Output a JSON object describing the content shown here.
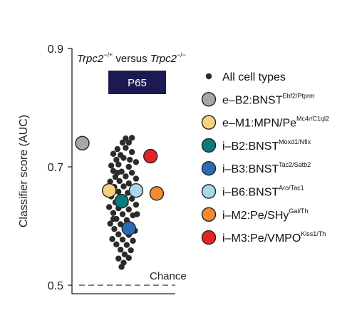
{
  "chart_data": {
    "type": "scatter",
    "title": {
      "gene1": "Trpc2",
      "sup1": "−/+",
      "middle": " versus ",
      "gene2": "Trpc2",
      "sup2": "−/−"
    },
    "badge": "P65",
    "ylabel": "Classifier score (AUC)",
    "ylim": [
      0.5,
      0.9
    ],
    "yticks": [
      {
        "value": 0.5,
        "label": "0.5"
      },
      {
        "value": 0.7,
        "label": "0.7"
      },
      {
        "value": 0.9,
        "label": "0.9"
      }
    ],
    "chance": {
      "value": 0.5,
      "label": "Chance"
    },
    "colors": {
      "all_cells": "#2b2b2b",
      "badge_bg": "#1c1a52"
    },
    "all_cell_types": {
      "name": "All cell types",
      "points": [
        {
          "x": 0.52,
          "y": 0.748
        },
        {
          "x": 0.58,
          "y": 0.749
        },
        {
          "x": 0.49,
          "y": 0.741
        },
        {
          "x": 0.55,
          "y": 0.741
        },
        {
          "x": 0.44,
          "y": 0.73
        },
        {
          "x": 0.52,
          "y": 0.732
        },
        {
          "x": 0.4,
          "y": 0.722
        },
        {
          "x": 0.47,
          "y": 0.72
        },
        {
          "x": 0.58,
          "y": 0.725
        },
        {
          "x": 0.43,
          "y": 0.712
        },
        {
          "x": 0.5,
          "y": 0.715
        },
        {
          "x": 0.62,
          "y": 0.708
        },
        {
          "x": 0.38,
          "y": 0.702
        },
        {
          "x": 0.45,
          "y": 0.704
        },
        {
          "x": 0.55,
          "y": 0.7
        },
        {
          "x": 0.4,
          "y": 0.693
        },
        {
          "x": 0.48,
          "y": 0.692
        },
        {
          "x": 0.58,
          "y": 0.69
        },
        {
          "x": 0.42,
          "y": 0.683
        },
        {
          "x": 0.52,
          "y": 0.684
        },
        {
          "x": 0.62,
          "y": 0.68
        },
        {
          "x": 0.37,
          "y": 0.675
        },
        {
          "x": 0.46,
          "y": 0.676
        },
        {
          "x": 0.55,
          "y": 0.672
        },
        {
          "x": 0.41,
          "y": 0.666
        },
        {
          "x": 0.5,
          "y": 0.667
        },
        {
          "x": 0.6,
          "y": 0.664
        },
        {
          "x": 0.45,
          "y": 0.658
        },
        {
          "x": 0.54,
          "y": 0.656
        },
        {
          "x": 0.38,
          "y": 0.65
        },
        {
          "x": 0.48,
          "y": 0.648
        },
        {
          "x": 0.58,
          "y": 0.646
        },
        {
          "x": 0.42,
          "y": 0.64
        },
        {
          "x": 0.52,
          "y": 0.638
        },
        {
          "x": 0.62,
          "y": 0.636
        },
        {
          "x": 0.36,
          "y": 0.632
        },
        {
          "x": 0.45,
          "y": 0.63
        },
        {
          "x": 0.55,
          "y": 0.628
        },
        {
          "x": 0.4,
          "y": 0.622
        },
        {
          "x": 0.49,
          "y": 0.62
        },
        {
          "x": 0.59,
          "y": 0.618
        },
        {
          "x": 0.43,
          "y": 0.612
        },
        {
          "x": 0.53,
          "y": 0.61
        },
        {
          "x": 0.37,
          "y": 0.604
        },
        {
          "x": 0.47,
          "y": 0.603
        },
        {
          "x": 0.57,
          "y": 0.601
        },
        {
          "x": 0.41,
          "y": 0.595
        },
        {
          "x": 0.51,
          "y": 0.594
        },
        {
          "x": 0.61,
          "y": 0.592
        },
        {
          "x": 0.45,
          "y": 0.586
        },
        {
          "x": 0.55,
          "y": 0.585
        },
        {
          "x": 0.39,
          "y": 0.578
        },
        {
          "x": 0.49,
          "y": 0.577
        },
        {
          "x": 0.59,
          "y": 0.575
        },
        {
          "x": 0.43,
          "y": 0.569
        },
        {
          "x": 0.53,
          "y": 0.568
        },
        {
          "x": 0.47,
          "y": 0.56
        },
        {
          "x": 0.57,
          "y": 0.559
        },
        {
          "x": 0.51,
          "y": 0.552
        },
        {
          "x": 0.45,
          "y": 0.545
        },
        {
          "x": 0.55,
          "y": 0.546
        },
        {
          "x": 0.5,
          "y": 0.538
        },
        {
          "x": 0.48,
          "y": 0.531
        },
        {
          "x": 0.4,
          "y": 0.612
        },
        {
          "x": 0.6,
          "y": 0.655
        },
        {
          "x": 0.44,
          "y": 0.69
        },
        {
          "x": 0.56,
          "y": 0.712
        },
        {
          "x": 0.39,
          "y": 0.66
        },
        {
          "x": 0.63,
          "y": 0.62
        }
      ]
    },
    "highlighted": [
      {
        "label": "e–B2:BNST",
        "sup": "Ebf2/Ptprm",
        "color": "#a7a7a7",
        "x": 0.1,
        "y": 0.74
      },
      {
        "label": "e–M1:MPN/Pe",
        "sup": "Mc4r/C1ql2",
        "color": "#f7d27c",
        "x": 0.36,
        "y": 0.66
      },
      {
        "label": "i–B2:BNST",
        "sup": "Moxd1/Nfix",
        "color": "#0b7a7c",
        "x": 0.48,
        "y": 0.642
      },
      {
        "label": "i–B3:BNST",
        "sup": "Tac2/Satb2",
        "color": "#2d6bb8",
        "x": 0.55,
        "y": 0.596
      },
      {
        "label": "i–B6:BNST",
        "sup": "Aro/Tac1",
        "color": "#a9d8ec",
        "x": 0.62,
        "y": 0.66
      },
      {
        "label": "i–M2:Pe/SHy",
        "sup": "Gal/Th",
        "color": "#f28a30",
        "x": 0.82,
        "y": 0.655
      },
      {
        "label": "i–M3:Pe/VMPO",
        "sup": "Kiss1/Th",
        "color": "#e42424",
        "x": 0.76,
        "y": 0.718
      }
    ]
  }
}
